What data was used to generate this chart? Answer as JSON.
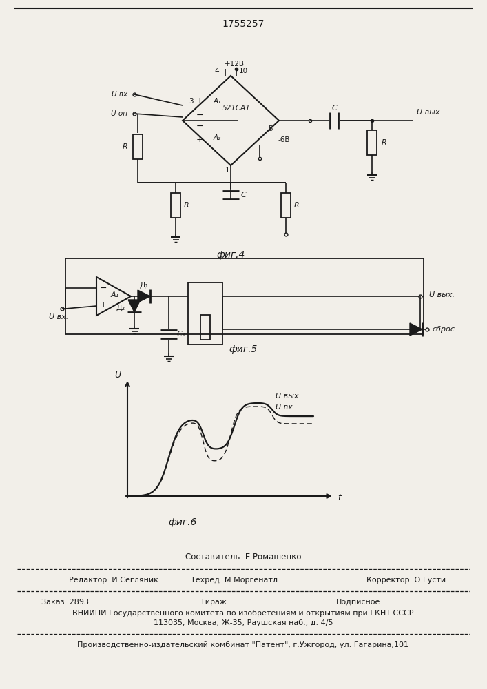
{
  "title": "1755257",
  "fig4_label": "фиг.4",
  "fig5_label": "фиг.5",
  "fig6_label": "фиг.6",
  "footer_composer": "Составитель  Е.Ромашенко",
  "footer_editor": "Редактор  И.Сегляник",
  "footer_techred": "Техред  М.Моргенатл",
  "footer_corrector": "Корректор  О.Густи",
  "footer_order": "Заказ  2893",
  "footer_tirage": "Тираж",
  "footer_podpisnoe": "Подписное",
  "footer_vniiipi": "ВНИИПИ Государственного комитета по изобретениям и открытиям при ГКНТ СССР",
  "footer_address": "113035, Москва, Ж-35, Раушская наб., д. 4/5",
  "footer_plant": "Производственно-издательский комбинат \"Патент\", г.Ужгород, ул. Гагарина,101",
  "bg_color": "#f2efe9",
  "line_color": "#1a1a1a"
}
